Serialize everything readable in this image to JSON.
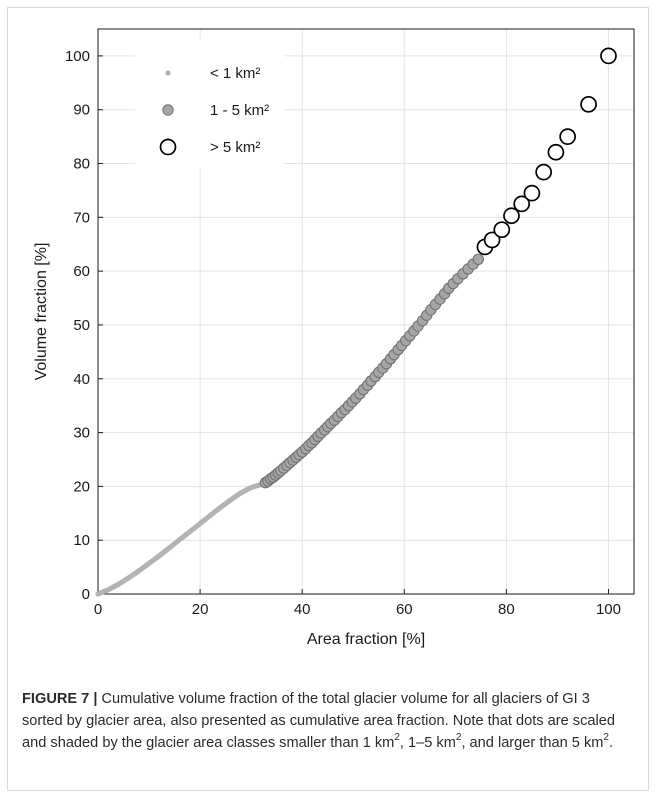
{
  "chart_data": {
    "type": "scatter",
    "xlabel": "Area fraction [%]",
    "ylabel": "Volume fraction [%]",
    "xlim": [
      0,
      105
    ],
    "ylim": [
      0,
      105
    ],
    "xticks": [
      0,
      20,
      40,
      60,
      80,
      100
    ],
    "yticks": [
      0,
      10,
      20,
      30,
      40,
      50,
      60,
      70,
      80,
      90,
      100
    ],
    "grid": true,
    "legend_position": "top-left",
    "series": [
      {
        "name": "< 1 km²",
        "marker": "small-dot",
        "color": "#b3b3b3",
        "x": [
          0,
          2,
          4,
          6,
          8,
          10,
          12,
          14,
          16,
          18,
          20,
          22,
          24,
          26,
          28,
          30,
          32.5
        ],
        "y": [
          0,
          0.8,
          1.8,
          3.0,
          4.3,
          5.7,
          7.1,
          8.6,
          10.1,
          11.6,
          13.1,
          14.6,
          16.1,
          17.5,
          18.8,
          19.8,
          20.5
        ]
      },
      {
        "name": "1 - 5 km²",
        "marker": "filled-circle",
        "color": "#a6a6a6",
        "x": [
          32.8,
          33.3,
          33.8,
          34.3,
          34.8,
          35.3,
          35.8,
          36.4,
          37.0,
          37.6,
          38.2,
          38.8,
          39.4,
          40.0,
          40.7,
          41.3,
          41.9,
          42.5,
          43.1,
          43.7,
          44.4,
          45.0,
          45.6,
          46.3,
          47.0,
          47.7,
          48.4,
          49.1,
          49.8,
          50.5,
          51.3,
          52.0,
          52.8,
          53.5,
          54.3,
          55.0,
          55.8,
          56.5,
          57.3,
          58.0,
          58.8,
          59.5,
          60.3,
          61.1,
          61.9,
          62.7,
          63.6,
          64.4,
          65.2,
          66.1,
          67.0,
          67.9,
          68.7,
          69.6,
          70.5,
          71.5,
          72.5,
          73.5,
          74.5
        ],
        "y": [
          20.7,
          21.0,
          21.4,
          21.7,
          22.1,
          22.5,
          22.9,
          23.4,
          23.9,
          24.4,
          24.9,
          25.4,
          25.9,
          26.4,
          27.0,
          27.6,
          28.1,
          28.7,
          29.3,
          29.9,
          30.5,
          31.1,
          31.7,
          32.3,
          33.0,
          33.7,
          34.3,
          35.0,
          35.7,
          36.4,
          37.2,
          38.0,
          38.8,
          39.6,
          40.4,
          41.2,
          42.0,
          42.8,
          43.7,
          44.5,
          45.4,
          46.2,
          47.1,
          48.0,
          48.9,
          49.8,
          50.8,
          51.8,
          52.8,
          53.8,
          54.8,
          55.8,
          56.8,
          57.7,
          58.6,
          59.5,
          60.4,
          61.3,
          62.2
        ]
      },
      {
        "name": "> 5 km²",
        "marker": "open-circle",
        "color": "#000000",
        "x": [
          75.8,
          77.2,
          79.1,
          81.0,
          83.0,
          85.0,
          87.3,
          89.7,
          92.0,
          96.1,
          100
        ],
        "y": [
          64.5,
          65.8,
          67.7,
          70.3,
          72.5,
          74.5,
          78.4,
          82.1,
          85.0,
          91.0,
          100
        ]
      }
    ]
  },
  "caption": {
    "label": "FIGURE 7 |",
    "text_main": " Cumulative volume fraction of the total glacier volume for all glaciers of GI 3 sorted by glacier area, also presented as cumulative area fraction. Note that dots are scaled and shaded by the glacier area classes smaller than 1 km",
    "sup1": "2",
    "text_b": ", 1–5 km",
    "sup2": "2",
    "text_c": ", and larger than 5 km",
    "sup3": "2",
    "text_d": "."
  }
}
